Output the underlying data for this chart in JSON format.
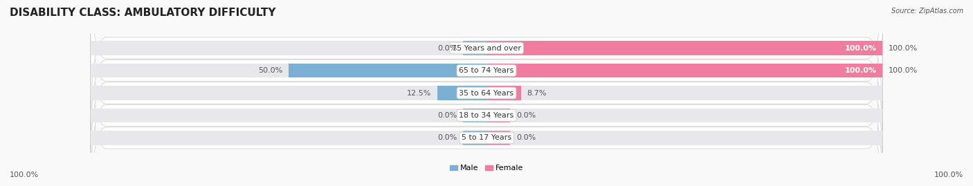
{
  "title": "DISABILITY CLASS: AMBULATORY DIFFICULTY",
  "source": "Source: ZipAtlas.com",
  "categories": [
    "5 to 17 Years",
    "18 to 34 Years",
    "35 to 64 Years",
    "65 to 74 Years",
    "75 Years and over"
  ],
  "male_values": [
    0.0,
    0.0,
    12.5,
    50.0,
    0.0
  ],
  "female_values": [
    0.0,
    0.0,
    8.7,
    100.0,
    100.0
  ],
  "male_color": "#7bafd4",
  "female_color": "#f07ca0",
  "bar_bg_color": "#e8e8ec",
  "bar_height": 0.62,
  "row_bg_color": "#efefef",
  "max_value": 100.0,
  "title_fontsize": 11,
  "label_fontsize": 8,
  "category_fontsize": 8,
  "footer_fontsize": 8,
  "axis_label_left": "100.0%",
  "axis_label_right": "100.0%",
  "background_color": "#f9f9f9",
  "min_stub": 6.0
}
